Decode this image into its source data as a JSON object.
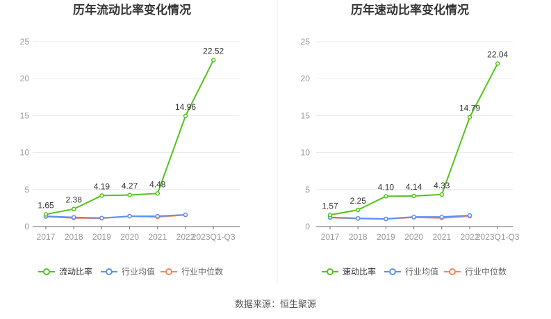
{
  "chart_data": [
    {
      "type": "line",
      "title": "历年流动比率变化情况",
      "categories": [
        "2017",
        "2018",
        "2019",
        "2020",
        "2021",
        "2022",
        "2023Q1-Q3"
      ],
      "ylim": [
        0,
        25
      ],
      "yticks": [
        0,
        5,
        10,
        15,
        20,
        25
      ],
      "grid": true,
      "legend": "bottom",
      "series": [
        {
          "name": "流动比率",
          "color": "#52c41a",
          "values": [
            1.65,
            2.38,
            4.19,
            4.27,
            4.48,
            14.96,
            22.52
          ],
          "labels": [
            "1.65",
            "2.38",
            "4.19",
            "4.27",
            "4.48",
            "14.96",
            "22.52"
          ]
        },
        {
          "name": "行业均值",
          "color": "#5b8ff9",
          "values": [
            1.4,
            1.25,
            1.15,
            1.4,
            1.4,
            1.6,
            null
          ]
        },
        {
          "name": "行业中位数",
          "color": "#f6855b",
          "values": [
            1.35,
            1.15,
            1.12,
            1.4,
            1.3,
            1.58,
            null
          ]
        }
      ]
    },
    {
      "type": "line",
      "title": "历年速动比率变化情况",
      "categories": [
        "2017",
        "2018",
        "2019",
        "2020",
        "2021",
        "2022",
        "2023Q1-Q3"
      ],
      "ylim": [
        0,
        25
      ],
      "yticks": [
        0,
        5,
        10,
        15,
        20,
        25
      ],
      "grid": true,
      "legend": "bottom",
      "series": [
        {
          "name": "速动比率",
          "color": "#52c41a",
          "values": [
            1.57,
            2.25,
            4.1,
            4.14,
            4.33,
            14.79,
            22.04
          ],
          "labels": [
            "1.57",
            "2.25",
            "4.10",
            "4.14",
            "4.33",
            "14.79",
            "22.04"
          ]
        },
        {
          "name": "行业均值",
          "color": "#5b8ff9",
          "values": [
            1.25,
            1.12,
            1.05,
            1.3,
            1.3,
            1.5,
            null
          ]
        },
        {
          "name": "行业中位数",
          "color": "#f6855b",
          "values": [
            1.2,
            1.08,
            1.02,
            1.25,
            1.15,
            1.4,
            null
          ]
        }
      ]
    }
  ],
  "source": "数据来源：恒生聚源"
}
